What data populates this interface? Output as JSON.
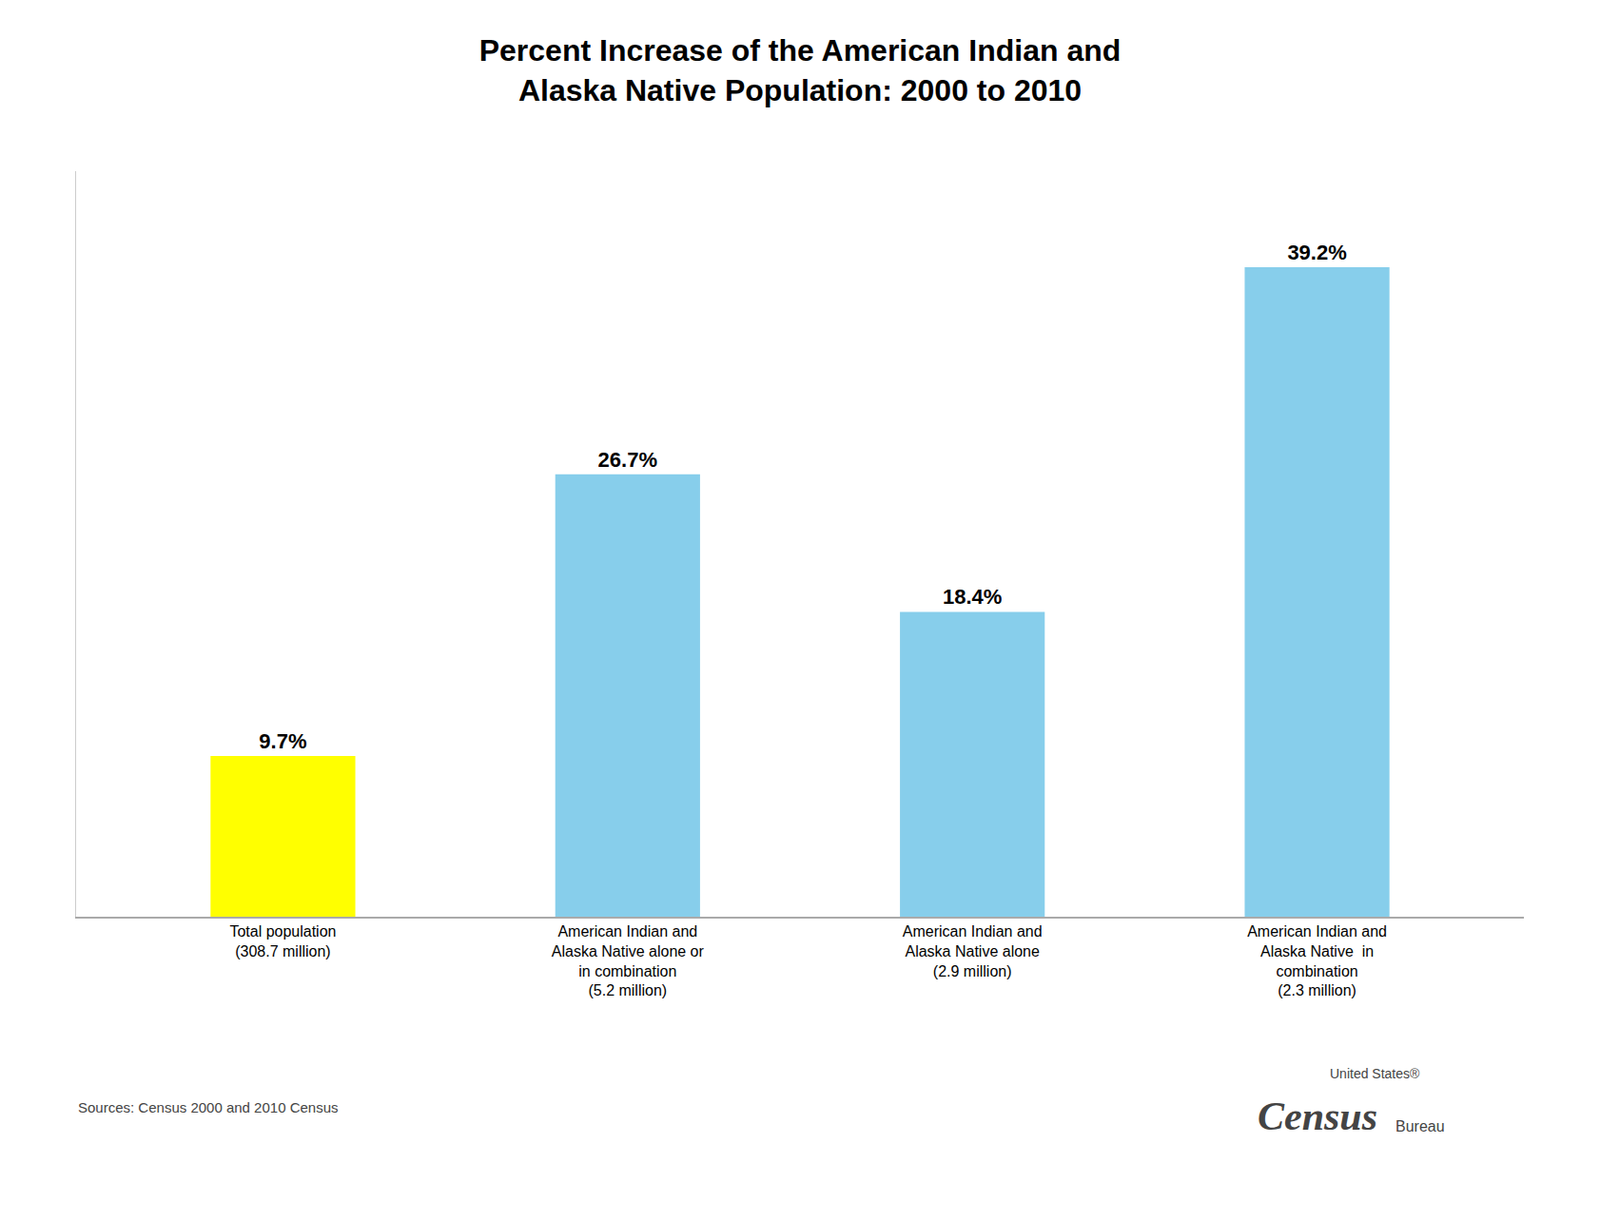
{
  "chart_data": {
    "type": "bar",
    "title": "Percent Increase of the American Indian and\nAlaska Native Population: 2000 to 2010",
    "categories": [
      "Total population\n(308.7 million)",
      "American Indian and\nAlaska Native alone or\nin combination\n(5.2 million)",
      "American Indian and\nAlaska Native alone\n(2.9 million)",
      "American Indian and\nAlaska Native  in\ncombination\n(2.3 million)"
    ],
    "values": [
      9.7,
      26.7,
      18.4,
      39.2
    ],
    "value_labels": [
      "9.7%",
      "26.7%",
      "18.4%",
      "39.2%"
    ],
    "data_labels": true,
    "colors": [
      "#FFFF00",
      "#87CEEB",
      "#87CEEB",
      "#87CEEB"
    ],
    "ylim": [
      0,
      45
    ],
    "grid": false,
    "tick_labels": "x",
    "annotations": [
      "Sources: Census 2000 and 2010 Census",
      "United States®",
      "Census",
      "Bureau"
    ]
  }
}
